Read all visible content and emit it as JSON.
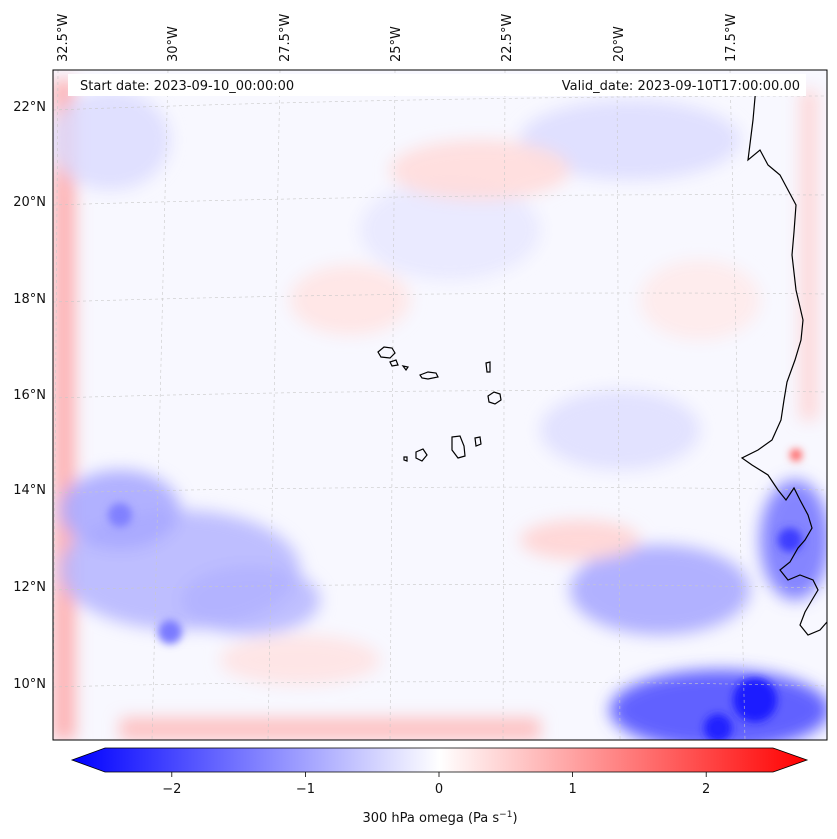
{
  "header": {
    "start_date": "Start date: 2023-09-10_00:00:00",
    "valid_date": "Valid_date: 2023-09-10T17:00:00.00"
  },
  "axes": {
    "lon_labels": [
      "32.5°W",
      "30°W",
      "27.5°W",
      "25°W",
      "22.5°W",
      "20°W",
      "17.5°W"
    ],
    "lat_labels": [
      "22°N",
      "20°N",
      "18°N",
      "16°N",
      "14°N",
      "12°N",
      "10°N"
    ]
  },
  "colorbar": {
    "ticks": [
      "−2",
      "−1",
      "0",
      "1",
      "2"
    ],
    "tick_values": [
      -2,
      -1,
      0,
      1,
      2
    ],
    "range": [
      -2.75,
      2.75
    ],
    "label": "300 hPa omega (Pa s",
    "label_sup": "−1",
    "label_end": ")",
    "colormap": [
      "#0000ff",
      "#ffffff",
      "#ff0000"
    ]
  },
  "map": {
    "variable": "300 hPa omega",
    "units": "Pa s-1",
    "features": [
      "coastline-west-africa",
      "cape-verde-islands"
    ]
  }
}
